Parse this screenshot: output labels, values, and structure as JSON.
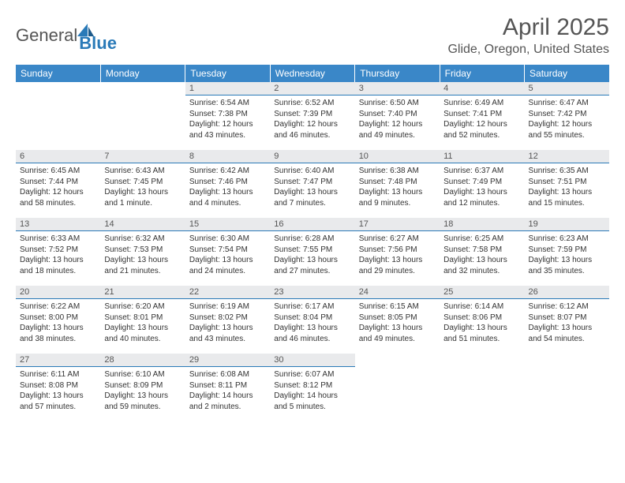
{
  "logo": {
    "part1": "General",
    "part2": "Blue"
  },
  "title": "April 2025",
  "subtitle": "Glide, Oregon, United States",
  "colors": {
    "header_bg": "#3a87c8",
    "header_text": "#ffffff",
    "daynum_bg": "#e9eaec",
    "daynum_border": "#2a7ab8",
    "body_text": "#333333",
    "title_text": "#555555",
    "logo_accent": "#2a7ab8"
  },
  "day_headers": [
    "Sunday",
    "Monday",
    "Tuesday",
    "Wednesday",
    "Thursday",
    "Friday",
    "Saturday"
  ],
  "weeks": [
    [
      {
        "empty": true
      },
      {
        "empty": true
      },
      {
        "num": "1",
        "sunrise": "Sunrise: 6:54 AM",
        "sunset": "Sunset: 7:38 PM",
        "daylight": "Daylight: 12 hours and 43 minutes."
      },
      {
        "num": "2",
        "sunrise": "Sunrise: 6:52 AM",
        "sunset": "Sunset: 7:39 PM",
        "daylight": "Daylight: 12 hours and 46 minutes."
      },
      {
        "num": "3",
        "sunrise": "Sunrise: 6:50 AM",
        "sunset": "Sunset: 7:40 PM",
        "daylight": "Daylight: 12 hours and 49 minutes."
      },
      {
        "num": "4",
        "sunrise": "Sunrise: 6:49 AM",
        "sunset": "Sunset: 7:41 PM",
        "daylight": "Daylight: 12 hours and 52 minutes."
      },
      {
        "num": "5",
        "sunrise": "Sunrise: 6:47 AM",
        "sunset": "Sunset: 7:42 PM",
        "daylight": "Daylight: 12 hours and 55 minutes."
      }
    ],
    [
      {
        "num": "6",
        "sunrise": "Sunrise: 6:45 AM",
        "sunset": "Sunset: 7:44 PM",
        "daylight": "Daylight: 12 hours and 58 minutes."
      },
      {
        "num": "7",
        "sunrise": "Sunrise: 6:43 AM",
        "sunset": "Sunset: 7:45 PM",
        "daylight": "Daylight: 13 hours and 1 minute."
      },
      {
        "num": "8",
        "sunrise": "Sunrise: 6:42 AM",
        "sunset": "Sunset: 7:46 PM",
        "daylight": "Daylight: 13 hours and 4 minutes."
      },
      {
        "num": "9",
        "sunrise": "Sunrise: 6:40 AM",
        "sunset": "Sunset: 7:47 PM",
        "daylight": "Daylight: 13 hours and 7 minutes."
      },
      {
        "num": "10",
        "sunrise": "Sunrise: 6:38 AM",
        "sunset": "Sunset: 7:48 PM",
        "daylight": "Daylight: 13 hours and 9 minutes."
      },
      {
        "num": "11",
        "sunrise": "Sunrise: 6:37 AM",
        "sunset": "Sunset: 7:49 PM",
        "daylight": "Daylight: 13 hours and 12 minutes."
      },
      {
        "num": "12",
        "sunrise": "Sunrise: 6:35 AM",
        "sunset": "Sunset: 7:51 PM",
        "daylight": "Daylight: 13 hours and 15 minutes."
      }
    ],
    [
      {
        "num": "13",
        "sunrise": "Sunrise: 6:33 AM",
        "sunset": "Sunset: 7:52 PM",
        "daylight": "Daylight: 13 hours and 18 minutes."
      },
      {
        "num": "14",
        "sunrise": "Sunrise: 6:32 AM",
        "sunset": "Sunset: 7:53 PM",
        "daylight": "Daylight: 13 hours and 21 minutes."
      },
      {
        "num": "15",
        "sunrise": "Sunrise: 6:30 AM",
        "sunset": "Sunset: 7:54 PM",
        "daylight": "Daylight: 13 hours and 24 minutes."
      },
      {
        "num": "16",
        "sunrise": "Sunrise: 6:28 AM",
        "sunset": "Sunset: 7:55 PM",
        "daylight": "Daylight: 13 hours and 27 minutes."
      },
      {
        "num": "17",
        "sunrise": "Sunrise: 6:27 AM",
        "sunset": "Sunset: 7:56 PM",
        "daylight": "Daylight: 13 hours and 29 minutes."
      },
      {
        "num": "18",
        "sunrise": "Sunrise: 6:25 AM",
        "sunset": "Sunset: 7:58 PM",
        "daylight": "Daylight: 13 hours and 32 minutes."
      },
      {
        "num": "19",
        "sunrise": "Sunrise: 6:23 AM",
        "sunset": "Sunset: 7:59 PM",
        "daylight": "Daylight: 13 hours and 35 minutes."
      }
    ],
    [
      {
        "num": "20",
        "sunrise": "Sunrise: 6:22 AM",
        "sunset": "Sunset: 8:00 PM",
        "daylight": "Daylight: 13 hours and 38 minutes."
      },
      {
        "num": "21",
        "sunrise": "Sunrise: 6:20 AM",
        "sunset": "Sunset: 8:01 PM",
        "daylight": "Daylight: 13 hours and 40 minutes."
      },
      {
        "num": "22",
        "sunrise": "Sunrise: 6:19 AM",
        "sunset": "Sunset: 8:02 PM",
        "daylight": "Daylight: 13 hours and 43 minutes."
      },
      {
        "num": "23",
        "sunrise": "Sunrise: 6:17 AM",
        "sunset": "Sunset: 8:04 PM",
        "daylight": "Daylight: 13 hours and 46 minutes."
      },
      {
        "num": "24",
        "sunrise": "Sunrise: 6:15 AM",
        "sunset": "Sunset: 8:05 PM",
        "daylight": "Daylight: 13 hours and 49 minutes."
      },
      {
        "num": "25",
        "sunrise": "Sunrise: 6:14 AM",
        "sunset": "Sunset: 8:06 PM",
        "daylight": "Daylight: 13 hours and 51 minutes."
      },
      {
        "num": "26",
        "sunrise": "Sunrise: 6:12 AM",
        "sunset": "Sunset: 8:07 PM",
        "daylight": "Daylight: 13 hours and 54 minutes."
      }
    ],
    [
      {
        "num": "27",
        "sunrise": "Sunrise: 6:11 AM",
        "sunset": "Sunset: 8:08 PM",
        "daylight": "Daylight: 13 hours and 57 minutes."
      },
      {
        "num": "28",
        "sunrise": "Sunrise: 6:10 AM",
        "sunset": "Sunset: 8:09 PM",
        "daylight": "Daylight: 13 hours and 59 minutes."
      },
      {
        "num": "29",
        "sunrise": "Sunrise: 6:08 AM",
        "sunset": "Sunset: 8:11 PM",
        "daylight": "Daylight: 14 hours and 2 minutes."
      },
      {
        "num": "30",
        "sunrise": "Sunrise: 6:07 AM",
        "sunset": "Sunset: 8:12 PM",
        "daylight": "Daylight: 14 hours and 5 minutes."
      },
      {
        "empty": true
      },
      {
        "empty": true
      },
      {
        "empty": true
      }
    ]
  ]
}
